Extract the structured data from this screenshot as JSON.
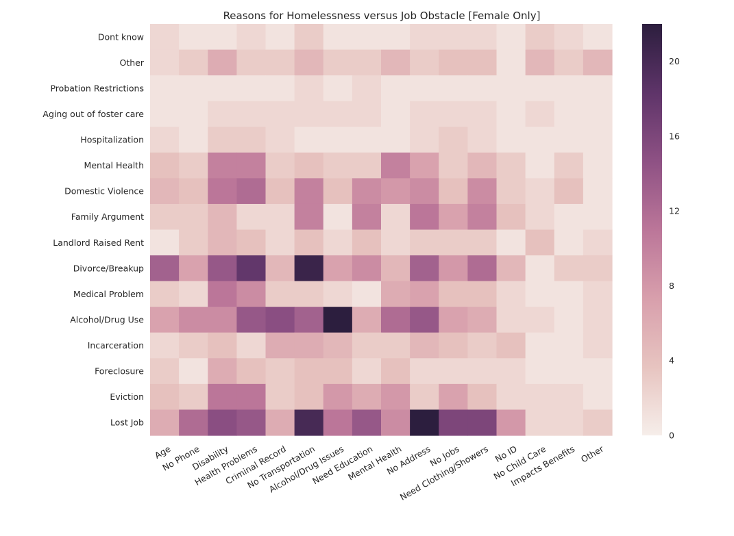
{
  "chart_data": {
    "type": "heatmap",
    "title": "Reasons for Homelessness versus Job Obstacle [Female Only]",
    "xlabel": "",
    "ylabel": "",
    "x_categories": [
      "Age",
      "No Phone",
      "Disability",
      "Health Problems",
      "Criminal Record",
      "No Transportation",
      "Alcohol/Drug Issues",
      "Need Education",
      "Mental Health",
      "No Address",
      "No Jobs",
      "Need Clothing/Showers",
      "No ID",
      "No Child Care",
      "Impacts Benefits",
      "Other"
    ],
    "y_categories": [
      "Dont know",
      "Other",
      "Probation Restrictions",
      "Aging out of foster care",
      "Hospitalization",
      "Mental Health",
      "Domestic Violence",
      "Family Argument",
      "Landlord Raised Rent",
      "Divorce/Breakup",
      "Medical Problem",
      "Alcohol/Drug Use",
      "Incarceration",
      "Foreclosure",
      "Eviction",
      "Lost Job"
    ],
    "values": [
      [
        2,
        1,
        1,
        2,
        1,
        3,
        1,
        1,
        1,
        2,
        2,
        2,
        1,
        3,
        2,
        1
      ],
      [
        2,
        3,
        6,
        3,
        3,
        5,
        3,
        3,
        5,
        3,
        4,
        4,
        1,
        5,
        3,
        5
      ],
      [
        1,
        1,
        1,
        1,
        1,
        2,
        1,
        2,
        1,
        1,
        1,
        1,
        1,
        1,
        1,
        1
      ],
      [
        1,
        1,
        2,
        2,
        2,
        2,
        2,
        2,
        1,
        2,
        2,
        2,
        1,
        2,
        1,
        1
      ],
      [
        2,
        1,
        3,
        3,
        2,
        1,
        1,
        1,
        1,
        2,
        3,
        2,
        1,
        1,
        1,
        1
      ],
      [
        4,
        3,
        10,
        10,
        3,
        4,
        3,
        3,
        10,
        7,
        3,
        5,
        3,
        1,
        3,
        1
      ],
      [
        5,
        4,
        11,
        12,
        4,
        10,
        4,
        9,
        8,
        9,
        4,
        9,
        3,
        2,
        4,
        1
      ],
      [
        3,
        3,
        5,
        2,
        2,
        10,
        1,
        10,
        2,
        11,
        7,
        10,
        4,
        2,
        1,
        1
      ],
      [
        1,
        3,
        5,
        4,
        2,
        4,
        2,
        4,
        2,
        3,
        3,
        3,
        1,
        4,
        1,
        2
      ],
      [
        13,
        7,
        14,
        18,
        5,
        21,
        7,
        9,
        5,
        13,
        8,
        12,
        5,
        1,
        3,
        3
      ],
      [
        3,
        2,
        11,
        9,
        3,
        3,
        2,
        1,
        6,
        7,
        4,
        4,
        2,
        1,
        1,
        2
      ],
      [
        7,
        9,
        9,
        14,
        15,
        13,
        22,
        6,
        12,
        14,
        7,
        6,
        2,
        2,
        1,
        2
      ],
      [
        2,
        3,
        4,
        2,
        6,
        6,
        5,
        3,
        3,
        5,
        4,
        3,
        4,
        1,
        1,
        2
      ],
      [
        3,
        1,
        6,
        4,
        3,
        4,
        4,
        2,
        4,
        2,
        2,
        2,
        2,
        1,
        1,
        1
      ],
      [
        4,
        3,
        11,
        11,
        3,
        4,
        8,
        6,
        8,
        3,
        7,
        4,
        2,
        2,
        2,
        1
      ],
      [
        6,
        12,
        15,
        14,
        6,
        20,
        11,
        14,
        9,
        22,
        16,
        16,
        8,
        2,
        2,
        3
      ]
    ],
    "colorbar": {
      "min": 0,
      "max": 22,
      "ticks": [
        0,
        4,
        8,
        12,
        16,
        20
      ]
    },
    "colormap": [
      "#f6eeea",
      "#e7c4c0",
      "#d89fac",
      "#bb7699",
      "#8e5184",
      "#5e3469",
      "#2c1e3e"
    ],
    "grid": false,
    "legend": "colorbar-right"
  }
}
